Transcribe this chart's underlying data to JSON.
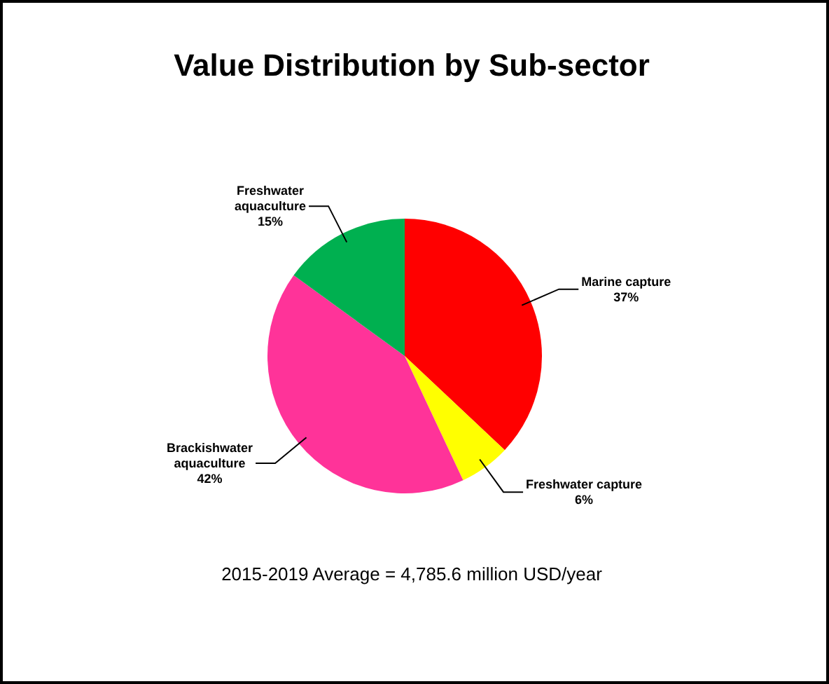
{
  "chart_data": {
    "type": "pie",
    "title": "Value Distribution by Sub-sector",
    "categories": [
      "Marine capture",
      "Freshwater capture",
      "Brackishwater aquaculture",
      "Freshwater aquaculture"
    ],
    "values": [
      37,
      6,
      42,
      15
    ],
    "colors": [
      "#ff0000",
      "#ffff00",
      "#ff3399",
      "#00b050"
    ],
    "value_labels": [
      "37%",
      "6%",
      "42%",
      "15%"
    ],
    "legend": false,
    "annotations": [
      "2015-2019 Average = 4,785.6 million USD/year"
    ]
  }
}
